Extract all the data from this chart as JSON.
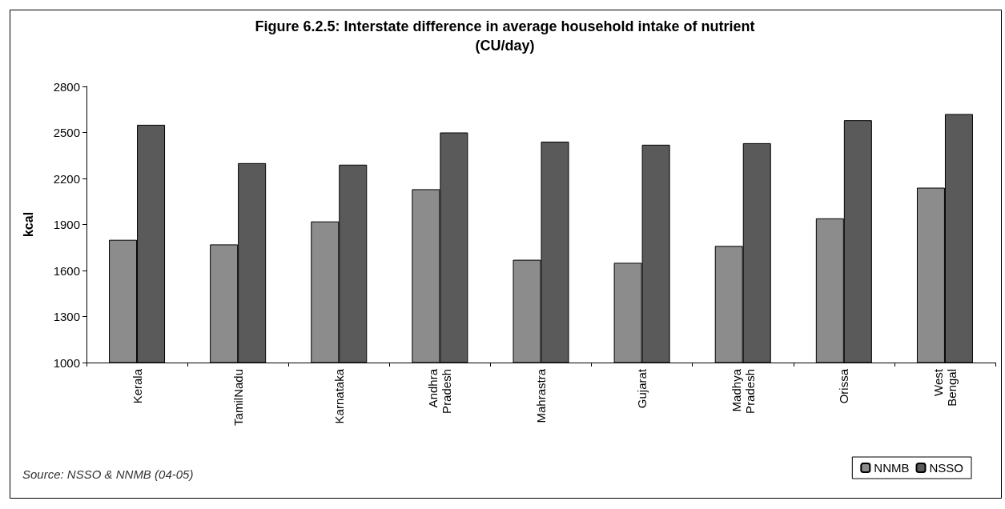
{
  "chart_data": {
    "type": "bar",
    "title": "Figure 6.2.5: Interstate difference in average household intake of nutrient\n(CU/day)",
    "ylabel": "kcal",
    "categories": [
      "Kerala",
      "TamilNadu",
      "Karnataka",
      "Andhra\nPradesh",
      "Mahrastra",
      "Gujarat",
      "Madhya\nPradesh",
      "Orissa",
      "West\nBengal"
    ],
    "series": [
      {
        "name": "NNMB",
        "color": "#8c8c8c",
        "values": [
          1800,
          1770,
          1920,
          2130,
          1670,
          1650,
          1760,
          1940,
          2140
        ]
      },
      {
        "name": "NSSO",
        "color": "#5a5a5a",
        "values": [
          2550,
          2300,
          2290,
          2500,
          2440,
          2420,
          2430,
          2580,
          2620
        ]
      }
    ],
    "ylim": [
      1000,
      2800
    ],
    "yticks": [
      1000,
      1300,
      1600,
      1900,
      2200,
      2500,
      2800
    ],
    "grid": false,
    "legend": "bottom right",
    "annotations": [
      "Source: NSSO & NNMB (04-05)"
    ]
  }
}
